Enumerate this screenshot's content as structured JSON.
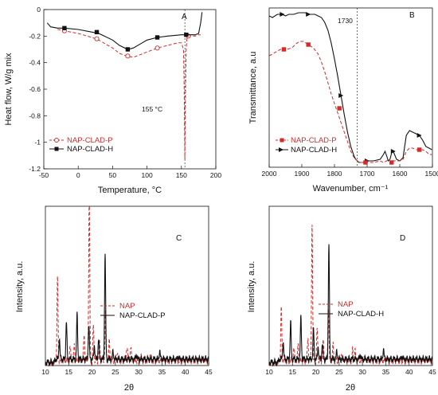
{
  "colors": {
    "red": "#d42a2a",
    "black": "#111111"
  },
  "chart_data": [
    {
      "panel": "A",
      "type": "line",
      "xlabel": "Temperature, °C",
      "ylabel": "Heat flow, W/g mix",
      "xlim": [
        -50,
        200
      ],
      "ylim": [
        -1.2,
        0
      ],
      "xticks": [
        -50,
        0,
        50,
        100,
        150,
        200
      ],
      "yticks": [
        0,
        -0.2,
        -0.4,
        -0.6,
        -0.8,
        -1,
        -1.2
      ],
      "annotation": "155 °C",
      "vline_x": 155,
      "series": [
        {
          "name": "NAP-CLAD-P",
          "style": "dashed",
          "color": "#d42a2a",
          "marker": "circle-open",
          "x": [
            -30,
            -20,
            0,
            20,
            30,
            50,
            60,
            70,
            80,
            90,
            100,
            115,
            130,
            145,
            150,
            153,
            154,
            155,
            156,
            157,
            158,
            160,
            165,
            170,
            175,
            178
          ],
          "y": [
            -0.15,
            -0.16,
            -0.18,
            -0.21,
            -0.23,
            -0.29,
            -0.33,
            -0.35,
            -0.36,
            -0.34,
            -0.32,
            -0.29,
            -0.27,
            -0.25,
            -0.25,
            -0.3,
            -0.6,
            -1.13,
            -0.6,
            -0.3,
            -0.22,
            -0.2,
            -0.2,
            -0.2,
            -0.19,
            -0.19
          ],
          "markers_x": [
            -20,
            27,
            72,
            115,
            160
          ],
          "markers_y": [
            -0.16,
            -0.22,
            -0.35,
            -0.29,
            -0.2
          ]
        },
        {
          "name": "NAP-CLAD-H",
          "style": "solid",
          "color": "#111111",
          "marker": "square",
          "x": [
            -45,
            -40,
            -30,
            -20,
            0,
            20,
            30,
            50,
            60,
            72,
            80,
            90,
            100,
            115,
            130,
            150,
            160,
            170,
            175,
            178,
            180
          ],
          "y": [
            -0.1,
            -0.13,
            -0.14,
            -0.14,
            -0.15,
            -0.17,
            -0.18,
            -0.23,
            -0.27,
            -0.3,
            -0.29,
            -0.26,
            -0.23,
            -0.21,
            -0.2,
            -0.19,
            -0.19,
            -0.19,
            -0.18,
            -0.1,
            -0.02
          ],
          "markers_x": [
            -20,
            27,
            72,
            115,
            157
          ],
          "markers_y": [
            -0.14,
            -0.17,
            -0.3,
            -0.21,
            -0.19
          ]
        }
      ]
    },
    {
      "panel": "B",
      "type": "line",
      "xlabel": "Wavenumber, cm⁻¹",
      "ylabel": "Transmittance, a.u",
      "xlim": [
        2000,
        1500
      ],
      "ylim": [
        0,
        1
      ],
      "xticks": [
        2000,
        1900,
        1800,
        1700,
        1600,
        1500
      ],
      "annotation": "1730",
      "vline_x": 1730,
      "series": [
        {
          "name": "NAP-CLAD-H",
          "style": "solid",
          "color": "#111111",
          "marker": "arrow",
          "x": [
            2000,
            1990,
            1975,
            1960,
            1950,
            1940,
            1925,
            1910,
            1890,
            1875,
            1860,
            1850,
            1840,
            1830,
            1820,
            1810,
            1800,
            1790,
            1780,
            1770,
            1760,
            1750,
            1740,
            1735,
            1730,
            1725,
            1720,
            1710,
            1700,
            1680,
            1660,
            1650,
            1645,
            1640,
            1635,
            1630,
            1625,
            1620,
            1610,
            1600,
            1590,
            1580,
            1570,
            1560,
            1550,
            1540,
            1530,
            1520,
            1510,
            1502
          ],
          "y": [
            0.95,
            0.94,
            0.96,
            0.96,
            0.95,
            0.96,
            0.96,
            0.97,
            0.97,
            0.96,
            0.96,
            0.95,
            0.94,
            0.91,
            0.86,
            0.78,
            0.68,
            0.57,
            0.45,
            0.33,
            0.22,
            0.13,
            0.07,
            0.05,
            0.04,
            0.03,
            0.03,
            0.03,
            0.04,
            0.04,
            0.05,
            0.08,
            0.1,
            0.07,
            0.04,
            0.05,
            0.09,
            0.1,
            0.05,
            0.04,
            0.06,
            0.2,
            0.23,
            0.22,
            0.21,
            0.2,
            0.17,
            0.13,
            0.12,
            0.11
          ],
          "markers_x": [
            1960,
            1880,
            1780,
            1700,
            1620,
            1540
          ],
          "markers_y": [
            0.96,
            0.96,
            0.45,
            0.04,
            0.1,
            0.2
          ]
        },
        {
          "name": "NAP-CLAD-P",
          "style": "dashed",
          "color": "#d42a2a",
          "marker": "square",
          "x": [
            2000,
            1990,
            1975,
            1965,
            1955,
            1945,
            1930,
            1915,
            1905,
            1895,
            1880,
            1865,
            1850,
            1840,
            1830,
            1820,
            1810,
            1800,
            1790,
            1780,
            1770,
            1760,
            1750,
            1740,
            1730,
            1720,
            1710,
            1700,
            1680,
            1660,
            1650,
            1640,
            1635,
            1630,
            1625,
            1620,
            1610,
            1600,
            1590,
            1580,
            1570,
            1560,
            1550,
            1540,
            1530,
            1520,
            1510,
            1502
          ],
          "y": [
            0.7,
            0.71,
            0.73,
            0.74,
            0.75,
            0.74,
            0.75,
            0.78,
            0.79,
            0.79,
            0.77,
            0.75,
            0.71,
            0.66,
            0.6,
            0.53,
            0.46,
            0.4,
            0.34,
            0.28,
            0.22,
            0.16,
            0.1,
            0.06,
            0.04,
            0.03,
            0.03,
            0.03,
            0.03,
            0.04,
            0.03,
            0.04,
            0.05,
            0.04,
            0.03,
            0.04,
            0.04,
            0.04,
            0.05,
            0.1,
            0.12,
            0.12,
            0.11,
            0.11,
            0.11,
            0.1,
            0.08,
            0.08
          ],
          "markers_x": [
            1955,
            1880,
            1785,
            1705,
            1625,
            1540
          ],
          "markers_y": [
            0.74,
            0.77,
            0.37,
            0.03,
            0.03,
            0.11
          ]
        }
      ]
    },
    {
      "panel": "C",
      "type": "line",
      "xlabel": "2θ",
      "ylabel": "Intensity, a.u.",
      "xlim": [
        10,
        45
      ],
      "ylim": [
        0,
        1
      ],
      "xticks": [
        10,
        15,
        20,
        25,
        30,
        35,
        40,
        45
      ],
      "series": [
        {
          "name": "NAP",
          "style": "dashed",
          "color": "#d42a2a",
          "peaks": [
            [
              12.6,
              0.52
            ],
            [
              15.3,
              0.09
            ],
            [
              16.2,
              0.1
            ],
            [
              18.3,
              0.16
            ],
            [
              19.4,
              1.05
            ],
            [
              20.3,
              0.22
            ],
            [
              21.6,
              0.12
            ],
            [
              22.9,
              0.3
            ],
            [
              23.7,
              0.12
            ],
            [
              25.4,
              0.06
            ],
            [
              27.5,
              0.1
            ],
            [
              28.3,
              0.09
            ],
            [
              30.4,
              0.04
            ],
            [
              32.5,
              0.04
            ],
            [
              35.0,
              0.03
            ]
          ],
          "baseline": 0.03
        },
        {
          "name": "NAP-CLAD-P",
          "style": "solid",
          "color": "#111111",
          "peaks": [
            [
              13.0,
              0.13
            ],
            [
              14.5,
              0.24
            ],
            [
              16.8,
              0.28
            ],
            [
              19.3,
              0.22
            ],
            [
              20.5,
              0.09
            ],
            [
              21.4,
              0.13
            ],
            [
              22.8,
              0.66
            ],
            [
              24.5,
              0.05
            ],
            [
              29.5,
              0.03
            ],
            [
              34.5,
              0.05
            ],
            [
              38.5,
              0.02
            ]
          ],
          "baseline": 0.04
        }
      ]
    },
    {
      "panel": "D",
      "type": "line",
      "xlabel": "2θ",
      "ylabel": "Intensity, a.u.",
      "xlim": [
        10,
        45
      ],
      "ylim": [
        0,
        1
      ],
      "xticks": [
        10,
        15,
        20,
        25,
        30,
        35,
        40,
        45
      ],
      "series": [
        {
          "name": "NAP",
          "style": "dashed",
          "color": "#d42a2a",
          "peaks": [
            [
              12.6,
              0.33
            ],
            [
              15.3,
              0.08
            ],
            [
              16.2,
              0.1
            ],
            [
              18.3,
              0.14
            ],
            [
              19.2,
              0.86
            ],
            [
              20.3,
              0.2
            ],
            [
              21.6,
              0.12
            ],
            [
              22.7,
              0.34
            ],
            [
              23.7,
              0.1
            ],
            [
              25.4,
              0.05
            ],
            [
              27.9,
              0.07
            ],
            [
              28.4,
              0.06
            ],
            [
              30.4,
              0.03
            ],
            [
              32.5,
              0.03
            ],
            [
              35.0,
              0.03
            ]
          ],
          "baseline": 0.03
        },
        {
          "name": "NAP-CLAD-H",
          "style": "solid",
          "color": "#111111",
          "peaks": [
            [
              13.0,
              0.11
            ],
            [
              14.6,
              0.23
            ],
            [
              16.8,
              0.26
            ],
            [
              19.5,
              0.19
            ],
            [
              20.5,
              0.08
            ],
            [
              21.4,
              0.1
            ],
            [
              22.8,
              0.72
            ],
            [
              24.5,
              0.05
            ],
            [
              29.5,
              0.03
            ],
            [
              34.5,
              0.06
            ],
            [
              38.5,
              0.02
            ]
          ],
          "baseline": 0.04
        }
      ]
    }
  ]
}
